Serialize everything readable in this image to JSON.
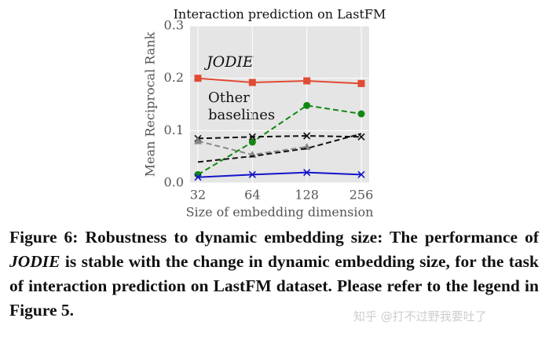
{
  "chart_data": {
    "type": "line",
    "title": "Interaction prediction on LastFM",
    "xlabel": "Size of embedding dimension",
    "ylabel": "Mean Reciprocal Rank",
    "categories": [
      "32",
      "64",
      "128",
      "256"
    ],
    "ylim": [
      0,
      0.3
    ],
    "yticks": [
      {
        "value": 0,
        "label": "0.0"
      },
      0.1,
      0.2,
      0.3
    ],
    "grid": true,
    "series": [
      {
        "color": "#e24a33",
        "dashed": false,
        "marker": "square",
        "values": [
          0.2,
          0.192,
          0.195,
          0.19
        ]
      },
      {
        "color": "#118811",
        "dashed": true,
        "marker": "circle",
        "values": [
          0.016,
          0.078,
          0.148,
          0.132
        ]
      },
      {
        "color": "#1414c8",
        "dashed": false,
        "marker": "x",
        "values": [
          0.011,
          0.016,
          0.02,
          0.016
        ]
      },
      {
        "color": "#111111",
        "dashed": true,
        "marker": "x",
        "values": [
          0.085,
          0.088,
          0.09,
          0.088
        ]
      },
      {
        "color": "#888888",
        "dashed": true,
        "marker": "triangle",
        "values": [
          0.08,
          0.054,
          0.069,
          null
        ]
      },
      {
        "color": "#111111",
        "dashed": true,
        "marker": null,
        "values": [
          0.04,
          0.051,
          0.066,
          0.094
        ]
      }
    ],
    "annotations": [
      "JODIE",
      "Other",
      "baselines"
    ]
  },
  "caption": [
    "Figure 6: Robustness to dynamic embedding size: The performance of ",
    "JODIE",
    " is stable with the change in dynamic embedding size, for the task of interaction prediction on LastFM dataset. Please refer to the legend in Figure 5."
  ],
  "watermark": "知乎 @打不过野我要吐了"
}
